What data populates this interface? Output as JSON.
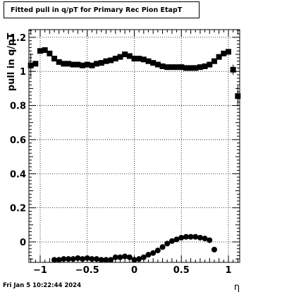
{
  "title": "Fitted pull in q/pT for Primary Rec Pion EtapT",
  "footer_date": "Fri Jan  5 10:22:44 2024",
  "chart_data": {
    "type": "scatter",
    "xlabel": "η",
    "ylabel": "pull in q/pT",
    "xlim": [
      -1.12,
      1.12
    ],
    "ylim": [
      -0.12,
      1.245
    ],
    "x_ticks": [
      -1,
      -0.5,
      0,
      0.5,
      1
    ],
    "x_tick_labels": [
      "−1",
      "−0.5",
      "0",
      "0.5",
      "1"
    ],
    "y_ticks": [
      0,
      0.2,
      0.4,
      0.6,
      0.8,
      1.0,
      1.2
    ],
    "y_tick_labels": [
      "0",
      "0.2",
      "0.4",
      "0.6",
      "0.8",
      "1",
      "1.2"
    ],
    "grid": true,
    "series": [
      {
        "marker": "square",
        "x": [
          -1.1,
          -1.05,
          -1.0,
          -0.95,
          -0.9,
          -0.85,
          -0.8,
          -0.75,
          -0.7,
          -0.65,
          -0.6,
          -0.55,
          -0.5,
          -0.45,
          -0.4,
          -0.35,
          -0.3,
          -0.25,
          -0.2,
          -0.15,
          -0.1,
          -0.05,
          0.0,
          0.05,
          0.1,
          0.15,
          0.2,
          0.25,
          0.3,
          0.35,
          0.4,
          0.45,
          0.5,
          0.55,
          0.6,
          0.65,
          0.7,
          0.75,
          0.8,
          0.85,
          0.9,
          0.95,
          1.0,
          1.05,
          1.1
        ],
        "y": [
          1.035,
          1.045,
          1.12,
          1.125,
          1.105,
          1.075,
          1.055,
          1.045,
          1.045,
          1.04,
          1.04,
          1.035,
          1.04,
          1.035,
          1.045,
          1.05,
          1.06,
          1.065,
          1.075,
          1.085,
          1.1,
          1.09,
          1.075,
          1.075,
          1.07,
          1.06,
          1.05,
          1.04,
          1.03,
          1.025,
          1.025,
          1.025,
          1.025,
          1.02,
          1.02,
          1.02,
          1.025,
          1.03,
          1.04,
          1.06,
          1.085,
          1.105,
          1.115,
          1.01,
          0.855
        ],
        "yerr": [
          0.07,
          0.015,
          0.01,
          0.008,
          0.008,
          0.008,
          0.008,
          0.008,
          0.008,
          0.008,
          0.008,
          0.008,
          0.008,
          0.008,
          0.008,
          0.008,
          0.008,
          0.008,
          0.008,
          0.008,
          0.008,
          0.008,
          0.008,
          0.008,
          0.008,
          0.008,
          0.008,
          0.008,
          0.008,
          0.008,
          0.008,
          0.008,
          0.008,
          0.008,
          0.008,
          0.008,
          0.008,
          0.008,
          0.008,
          0.008,
          0.008,
          0.008,
          0.01,
          0.03,
          0.06
        ]
      },
      {
        "marker": "circle",
        "x": [
          -0.85,
          -0.8,
          -0.75,
          -0.7,
          -0.65,
          -0.6,
          -0.55,
          -0.5,
          -0.45,
          -0.4,
          -0.35,
          -0.3,
          -0.25,
          -0.2,
          -0.15,
          -0.1,
          -0.05,
          0.0,
          0.05,
          0.1,
          0.15,
          0.2,
          0.25,
          0.3,
          0.35,
          0.4,
          0.45,
          0.5,
          0.55,
          0.6,
          0.65,
          0.7,
          0.75,
          0.8,
          0.85
        ],
        "y": [
          -0.105,
          -0.105,
          -0.1,
          -0.1,
          -0.1,
          -0.095,
          -0.1,
          -0.095,
          -0.1,
          -0.1,
          -0.105,
          -0.105,
          -0.105,
          -0.09,
          -0.09,
          -0.085,
          -0.09,
          -0.105,
          -0.1,
          -0.09,
          -0.075,
          -0.065,
          -0.05,
          -0.03,
          -0.01,
          0.005,
          0.015,
          0.025,
          0.03,
          0.03,
          0.03,
          0.025,
          0.02,
          0.01,
          -0.045
        ]
      }
    ]
  }
}
